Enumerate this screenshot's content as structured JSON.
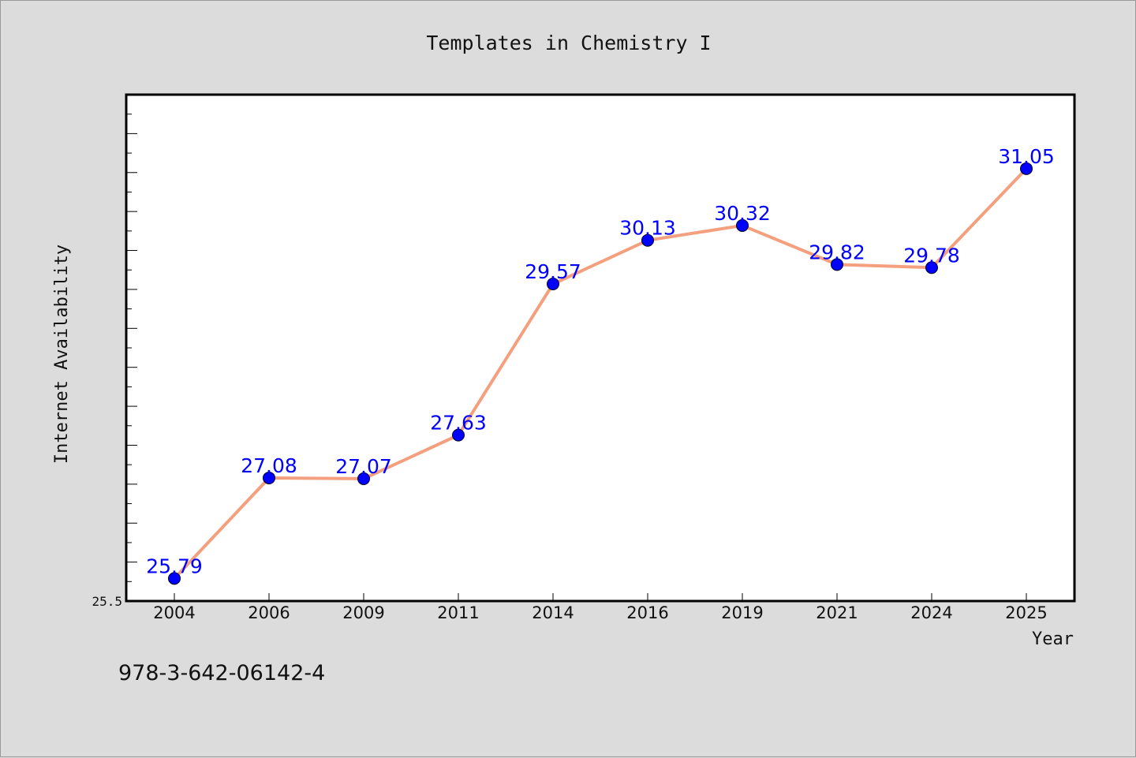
{
  "chart_data": {
    "type": "line",
    "title": "Templates in Chemistry I",
    "xlabel": "Year",
    "ylabel": "Internet Availability",
    "categories": [
      "2004",
      "2006",
      "2009",
      "2011",
      "2014",
      "2016",
      "2019",
      "2021",
      "2024",
      "2025"
    ],
    "series": [
      {
        "values": [
          25.79,
          27.08,
          27.07,
          27.63,
          29.57,
          30.13,
          30.32,
          29.82,
          29.78,
          31.05
        ]
      }
    ],
    "ylim": [
      25.5,
      32.0
    ],
    "y_tick_labels": [
      "25.5"
    ],
    "grid": false,
    "line_color": "#f4a07e",
    "marker_color": "#0000ff",
    "data_label_color": "#0000ff"
  },
  "footer": {
    "isbn": "978-3-642-06142-4"
  }
}
